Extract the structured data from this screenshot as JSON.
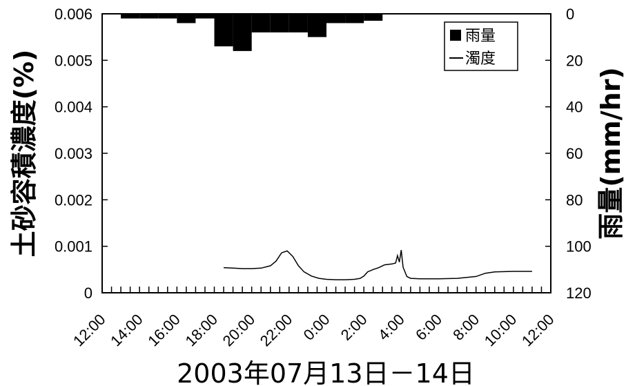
{
  "chart_data": {
    "type": "bar+line",
    "title": "",
    "xlabel": "2003年07月13日－14日",
    "ylabel_left": "土砂容積濃度(%)",
    "ylabel_right": "雨量(mm/hr)",
    "x_tick_labels": [
      "12:00",
      "14:00",
      "16:00",
      "18:00",
      "20:00",
      "22:00",
      "0:00",
      "2:00",
      "4:00",
      "6:00",
      "8:00",
      "10:00",
      "12:00"
    ],
    "xlim_hours": [
      12,
      36
    ],
    "ylim_left": [
      0,
      0.006
    ],
    "left_ticks": [
      "0",
      "0.001",
      "0.002",
      "0.003",
      "0.004",
      "0.005",
      "0.006"
    ],
    "ylim_right_inverted": [
      0,
      120
    ],
    "right_ticks": [
      "0",
      "20",
      "40",
      "60",
      "80",
      "100",
      "120"
    ],
    "legend": {
      "position": "top-right",
      "entries": [
        "雨量",
        "濁度"
      ]
    },
    "rain_series": {
      "name": "雨量",
      "unit": "mm/hr",
      "hour_start": [
        13,
        14,
        15,
        16,
        17,
        18,
        19,
        20,
        21,
        22,
        23,
        24,
        25,
        26,
        27
      ],
      "values": [
        2,
        2,
        2,
        4,
        2,
        14,
        16,
        8,
        8,
        8,
        10,
        4,
        4,
        3,
        0
      ]
    },
    "turbidity_series": {
      "name": "濁度",
      "unit": "%",
      "time_hours": [
        18.5,
        19.0,
        19.5,
        20.0,
        20.5,
        21.0,
        21.3,
        21.6,
        21.9,
        22.2,
        22.5,
        22.8,
        23.2,
        23.6,
        24.0,
        24.5,
        25.0,
        25.5,
        25.8,
        26.0,
        26.2,
        26.5,
        26.8,
        27.0,
        27.1,
        27.3,
        27.5,
        27.7,
        27.8,
        27.9,
        28.0,
        28.1,
        28.3,
        28.5,
        29.0,
        30.0,
        31.0,
        32.0,
        32.5,
        33.0,
        34.0,
        35.0
      ],
      "values": [
        0.00054,
        0.00053,
        0.00052,
        0.00052,
        0.00053,
        0.00058,
        0.00068,
        0.00086,
        0.0009,
        0.00078,
        0.00058,
        0.00045,
        0.00036,
        0.00031,
        0.00029,
        0.00028,
        0.00028,
        0.00029,
        0.00031,
        0.00036,
        0.00045,
        0.0005,
        0.00054,
        0.00058,
        0.0006,
        0.00061,
        0.00062,
        0.00064,
        0.0008,
        0.00066,
        0.00092,
        0.00055,
        0.00035,
        0.00031,
        0.0003,
        0.0003,
        0.00031,
        0.00035,
        0.00042,
        0.00045,
        0.00046,
        0.00046
      ]
    }
  }
}
